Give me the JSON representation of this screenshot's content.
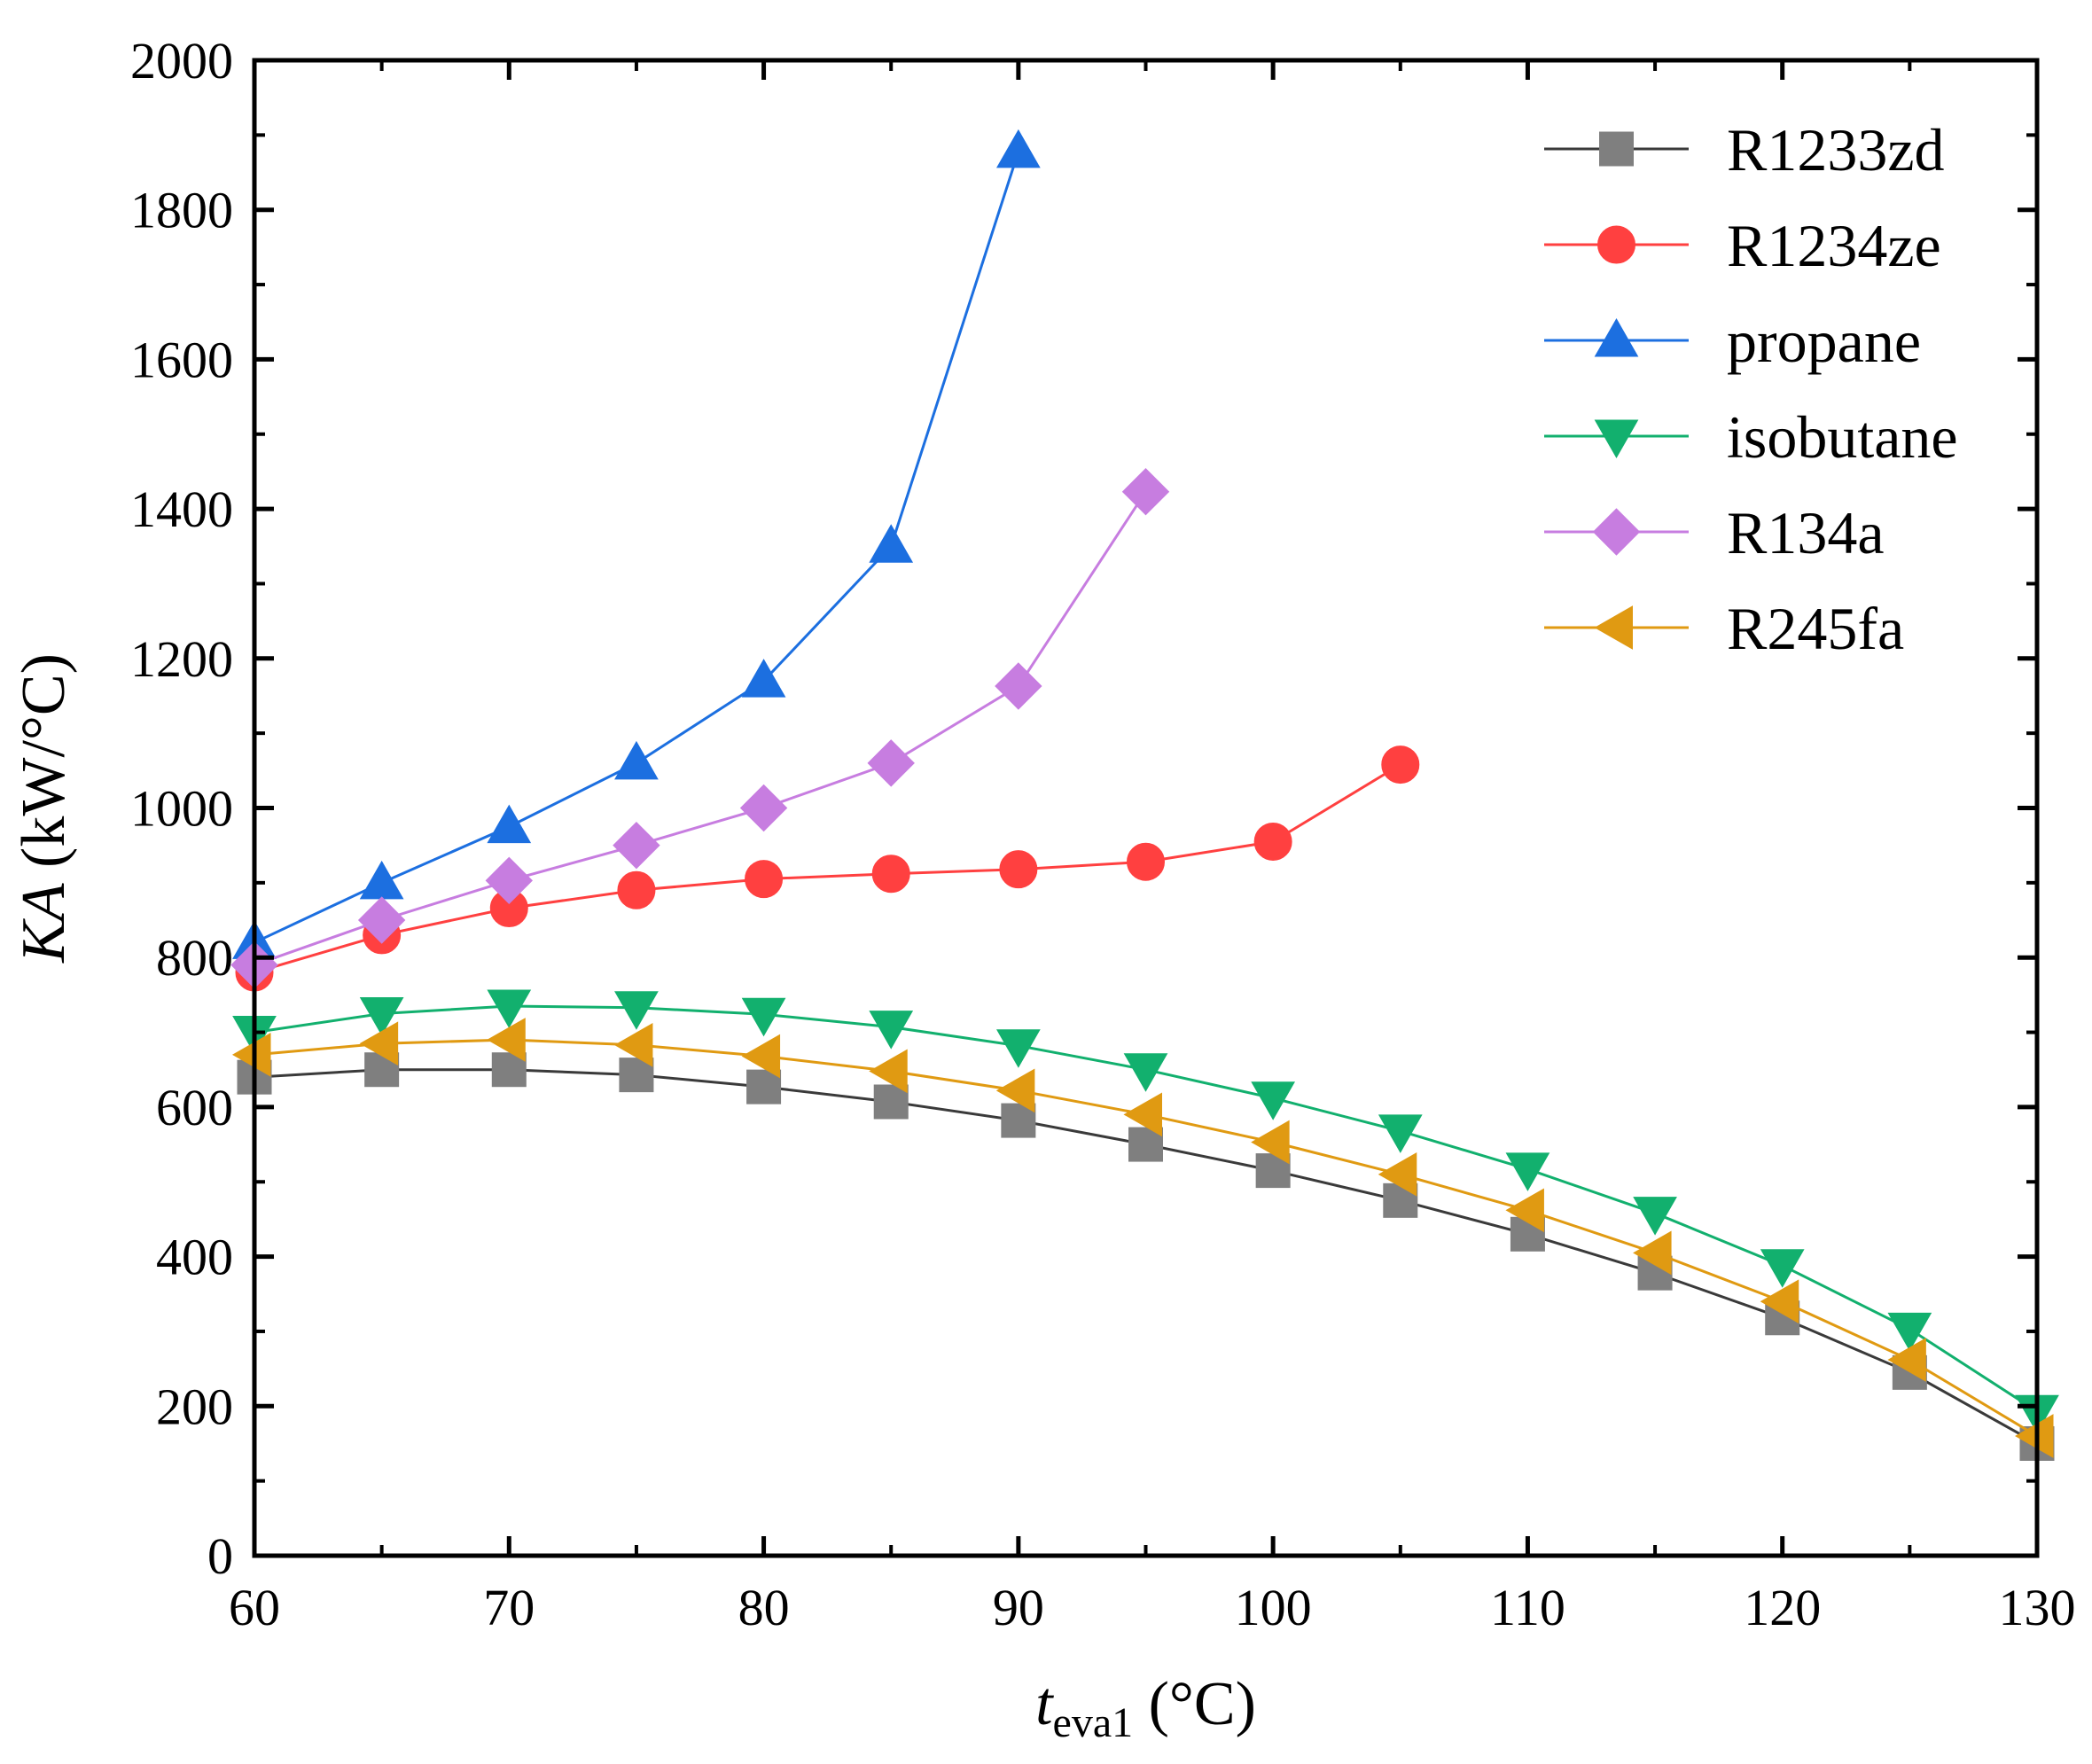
{
  "chart_data": {
    "type": "line",
    "title": "",
    "xlabel": {
      "main": "t",
      "sub": "eva1",
      "unit": " (°C)"
    },
    "ylabel": {
      "main": "KA",
      "unit": " (kW/°C)"
    },
    "xlim": [
      60,
      130
    ],
    "ylim": [
      0,
      2000
    ],
    "x_ticks": [
      60,
      70,
      80,
      90,
      100,
      110,
      120,
      130
    ],
    "y_ticks": [
      0,
      200,
      400,
      600,
      800,
      1000,
      1200,
      1400,
      1600,
      1800,
      2000
    ],
    "legend_position": "top-right",
    "series": [
      {
        "name": "R1233zd",
        "color": "#7f7f7f",
        "line_color": "#3a3a3a",
        "marker": "square",
        "points": [
          [
            60,
            640
          ],
          [
            65,
            650
          ],
          [
            70,
            650
          ],
          [
            75,
            643
          ],
          [
            80,
            627
          ],
          [
            85,
            607
          ],
          [
            90,
            582
          ],
          [
            95,
            550
          ],
          [
            100,
            515
          ],
          [
            105,
            475
          ],
          [
            110,
            430
          ],
          [
            115,
            378
          ],
          [
            120,
            318
          ],
          [
            125,
            245
          ],
          [
            130,
            150
          ]
        ]
      },
      {
        "name": "R1234ze",
        "color": "#ff4040",
        "line_color": "#ff4040",
        "marker": "circle",
        "points": [
          [
            60,
            780
          ],
          [
            65,
            830
          ],
          [
            70,
            866
          ],
          [
            75,
            890
          ],
          [
            80,
            905
          ],
          [
            85,
            912
          ],
          [
            90,
            918
          ],
          [
            95,
            928
          ],
          [
            100,
            955
          ],
          [
            105,
            1058
          ]
        ]
      },
      {
        "name": "propane",
        "color": "#1c6fe0",
        "line_color": "#1c6fe0",
        "marker": "triangle-up",
        "points": [
          [
            60,
            820
          ],
          [
            65,
            900
          ],
          [
            70,
            975
          ],
          [
            75,
            1060
          ],
          [
            80,
            1170
          ],
          [
            85,
            1350
          ],
          [
            90,
            1878
          ]
        ]
      },
      {
        "name": "isobutane",
        "color": "#12b06e",
        "line_color": "#12b06e",
        "marker": "triangle-down",
        "points": [
          [
            60,
            700
          ],
          [
            65,
            725
          ],
          [
            70,
            735
          ],
          [
            75,
            733
          ],
          [
            80,
            724
          ],
          [
            85,
            707
          ],
          [
            90,
            682
          ],
          [
            95,
            650
          ],
          [
            100,
            612
          ],
          [
            105,
            568
          ],
          [
            110,
            517
          ],
          [
            115,
            458
          ],
          [
            120,
            388
          ],
          [
            125,
            303
          ],
          [
            130,
            193
          ]
        ]
      },
      {
        "name": "R134a",
        "color": "#c77de0",
        "line_color": "#c77de0",
        "marker": "diamond",
        "points": [
          [
            60,
            790
          ],
          [
            65,
            850
          ],
          [
            70,
            903
          ],
          [
            75,
            950
          ],
          [
            80,
            1000
          ],
          [
            85,
            1060
          ],
          [
            90,
            1163
          ],
          [
            95,
            1423
          ]
        ]
      },
      {
        "name": "R245fa",
        "color": "#e09a12",
        "line_color": "#e09a12",
        "marker": "triangle-left",
        "points": [
          [
            60,
            670
          ],
          [
            65,
            685
          ],
          [
            70,
            690
          ],
          [
            75,
            683
          ],
          [
            80,
            668
          ],
          [
            85,
            648
          ],
          [
            90,
            622
          ],
          [
            95,
            590
          ],
          [
            100,
            553
          ],
          [
            105,
            510
          ],
          [
            110,
            462
          ],
          [
            115,
            405
          ],
          [
            120,
            340
          ],
          [
            125,
            262
          ],
          [
            130,
            160
          ]
        ]
      }
    ]
  }
}
